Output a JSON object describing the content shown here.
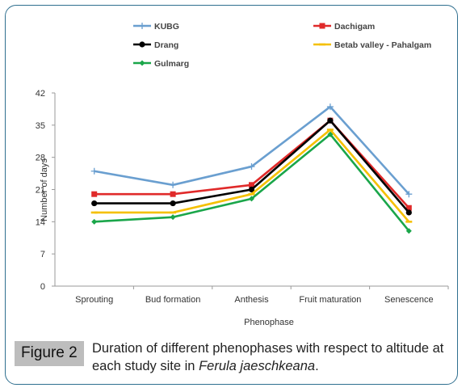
{
  "chart_data": {
    "type": "line",
    "title": "",
    "xlabel": "Phenophase",
    "ylabel": "Number of days",
    "categories": [
      "Sprouting",
      "Bud formation",
      "Anthesis",
      "Fruit maturation",
      "Senescence"
    ],
    "ylim": [
      0,
      42
    ],
    "yticks": [
      "0",
      "7",
      "14",
      "21",
      "28",
      "35",
      "42"
    ],
    "grid": false,
    "legend_position": "top",
    "series": [
      {
        "name": "KUBG",
        "color": "#6a9fd0",
        "marker": "plus",
        "values": [
          25,
          22,
          26,
          39,
          20
        ]
      },
      {
        "name": "Dachigam",
        "color": "#e02a2a",
        "marker": "square",
        "values": [
          20,
          20,
          22,
          36,
          17
        ]
      },
      {
        "name": "Drang",
        "color": "#000000",
        "marker": "circle",
        "values": [
          18,
          18,
          21,
          36,
          16
        ]
      },
      {
        "name": "Betab valley - Pahalgam",
        "color": "#f5c000",
        "marker": "dash",
        "values": [
          16,
          16,
          20,
          34,
          14
        ]
      },
      {
        "name": "Gulmarg",
        "color": "#1aa64a",
        "marker": "diamond",
        "values": [
          14,
          15,
          19,
          33,
          12
        ]
      }
    ]
  },
  "caption": {
    "label": "Figure 2",
    "text_before": "Duration of different phenophases with respect to altitude at each study site in ",
    "species": "Ferula jaeschkeana",
    "text_after": "."
  }
}
